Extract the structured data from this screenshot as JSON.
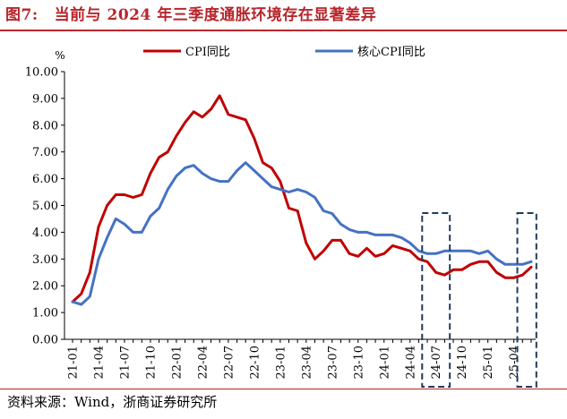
{
  "figure": {
    "label": "图7:",
    "title": "当前与 2024 年三季度通胀环境存在显著差异",
    "source": "资料来源：Wind，浙商证券研究所"
  },
  "chart_data": {
    "type": "line",
    "ylabel": "%",
    "ylim": [
      0,
      10
    ],
    "yticks": [
      "0.00",
      "1.00",
      "2.00",
      "3.00",
      "4.00",
      "5.00",
      "6.00",
      "7.00",
      "8.00",
      "9.00",
      "10.00"
    ],
    "xtick_labels": [
      "21-01",
      "21-04",
      "21-07",
      "21-10",
      "22-01",
      "22-04",
      "22-07",
      "22-10",
      "23-01",
      "23-04",
      "23-07",
      "23-10",
      "24-01",
      "24-04",
      "24-07",
      "24-10",
      "25-01",
      "25-04"
    ],
    "x": [
      "21-01",
      "21-02",
      "21-03",
      "21-04",
      "21-05",
      "21-06",
      "21-07",
      "21-08",
      "21-09",
      "21-10",
      "21-11",
      "21-12",
      "22-01",
      "22-02",
      "22-03",
      "22-04",
      "22-05",
      "22-06",
      "22-07",
      "22-08",
      "22-09",
      "22-10",
      "22-11",
      "22-12",
      "23-01",
      "23-02",
      "23-03",
      "23-04",
      "23-05",
      "23-06",
      "23-07",
      "23-08",
      "23-09",
      "23-10",
      "23-11",
      "23-12",
      "24-01",
      "24-02",
      "24-03",
      "24-04",
      "24-05",
      "24-06",
      "24-07",
      "24-08",
      "24-09",
      "24-10",
      "24-11",
      "24-12",
      "25-01",
      "25-02",
      "25-03",
      "25-04",
      "25-05",
      "25-06"
    ],
    "legend_position": "top",
    "grid": false,
    "series": [
      {
        "name": "CPI同比",
        "color": "#c00000",
        "values": [
          1.4,
          1.7,
          2.5,
          4.2,
          5.0,
          5.4,
          5.4,
          5.3,
          5.4,
          6.2,
          6.8,
          7.0,
          7.6,
          8.1,
          8.5,
          8.3,
          8.6,
          9.1,
          8.4,
          8.3,
          8.2,
          7.5,
          6.6,
          6.4,
          5.9,
          4.9,
          4.8,
          3.6,
          3.0,
          3.3,
          3.7,
          3.7,
          3.2,
          3.1,
          3.4,
          3.1,
          3.2,
          3.5,
          3.4,
          3.3,
          3.0,
          2.9,
          2.5,
          2.4,
          2.6,
          2.6,
          2.8,
          2.9,
          2.9,
          2.5,
          2.3,
          2.3,
          2.4,
          2.7
        ]
      },
      {
        "name": "核心CPI同比",
        "color": "#4472c4",
        "values": [
          1.4,
          1.3,
          1.6,
          3.0,
          3.8,
          4.5,
          4.3,
          4.0,
          4.0,
          4.6,
          4.9,
          5.6,
          6.1,
          6.4,
          6.5,
          6.2,
          6.0,
          5.9,
          5.9,
          6.3,
          6.6,
          6.3,
          6.0,
          5.7,
          5.6,
          5.5,
          5.6,
          5.5,
          5.3,
          4.8,
          4.7,
          4.3,
          4.1,
          4.0,
          4.0,
          3.9,
          3.9,
          3.9,
          3.8,
          3.6,
          3.3,
          3.2,
          3.2,
          3.3,
          3.3,
          3.3,
          3.3,
          3.2,
          3.3,
          3.0,
          2.8,
          2.8,
          2.8,
          2.9
        ]
      }
    ],
    "annotations": [
      {
        "type": "dashed-box",
        "x_from": "24-06",
        "x_to": "24-08",
        "color": "#1f3a5a"
      },
      {
        "type": "dashed-box",
        "x_from": "25-05",
        "x_to": "25-06",
        "color": "#1f3a5a"
      }
    ]
  }
}
